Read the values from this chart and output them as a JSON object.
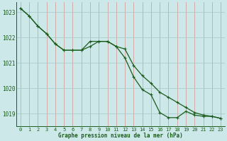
{
  "background_color": "#cce8e8",
  "line_color": "#1a5c1a",
  "xlabel": "Graphe pression niveau de la mer (hPa)",
  "xlim": [
    -0.5,
    23.5
  ],
  "ylim": [
    1018.5,
    1023.4
  ],
  "yticks": [
    1019,
    1020,
    1021,
    1022,
    1023
  ],
  "xticks": [
    0,
    1,
    2,
    3,
    4,
    5,
    6,
    7,
    8,
    9,
    10,
    11,
    12,
    13,
    14,
    15,
    16,
    17,
    18,
    19,
    20,
    21,
    22,
    23
  ],
  "xtick_labels": [
    "0",
    "1",
    "2",
    "3",
    "4",
    "5",
    "6",
    "7",
    "8",
    "9",
    "10",
    "11",
    "12",
    "13",
    "14",
    "15",
    "16",
    "17",
    "18",
    "19",
    "20",
    "21",
    "22",
    "23"
  ],
  "series1_x": [
    0,
    1,
    2,
    3,
    4,
    5,
    6,
    7,
    8,
    9,
    10,
    11,
    12,
    13,
    14,
    15,
    16,
    17,
    18,
    19,
    20,
    21,
    22,
    23
  ],
  "series1_y": [
    1023.15,
    1022.85,
    1022.45,
    1022.15,
    1021.75,
    1021.5,
    1021.5,
    1021.5,
    1021.65,
    1021.85,
    1021.85,
    1021.65,
    1021.2,
    1020.45,
    1019.95,
    1019.75,
    1019.05,
    1018.85,
    1018.85,
    1019.1,
    1018.95,
    1018.9,
    1018.9,
    1018.82
  ],
  "series2_x": [
    0,
    1,
    2,
    3,
    4,
    5,
    6,
    7,
    8,
    9,
    10,
    11,
    12,
    13,
    14,
    15,
    16,
    17,
    18,
    19,
    20,
    21,
    22,
    23
  ],
  "series2_y": [
    1023.15,
    1022.85,
    1022.45,
    1022.15,
    1021.75,
    1021.5,
    1021.5,
    1021.5,
    1021.85,
    1021.85,
    1021.85,
    1021.65,
    1021.55,
    1020.9,
    1020.5,
    1020.2,
    1019.85,
    1019.65,
    1019.45,
    1019.25,
    1019.05,
    1018.95,
    1018.9,
    1018.82
  ],
  "hgrid_color": "#aacccc",
  "vgrid_color": "#d4a0a0",
  "spine_color": "#1a5c1a",
  "tick_fontsize": 5.0,
  "xlabel_fontsize": 5.5,
  "marker_size": 3.0,
  "line_width": 0.9
}
